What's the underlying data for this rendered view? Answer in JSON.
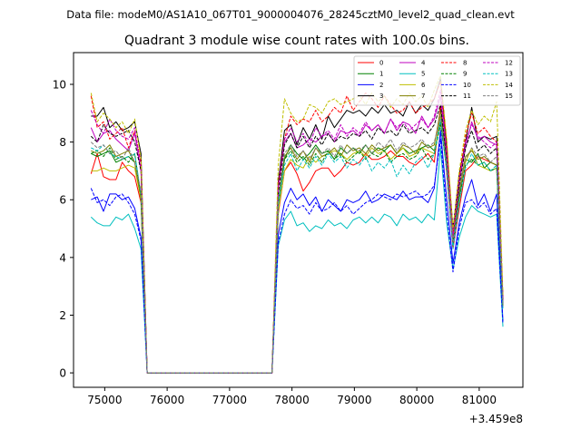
{
  "suptitle": "Data file: modeM0/AS1A10_067T01_9000004076_28245cztM0_level2_quad_clean.evt",
  "chart_data": {
    "type": "line",
    "title": "Quadrant 3 module wise count rates with 100.0s bins.",
    "xlabel": "",
    "ylabel": "",
    "x_offset_label": "+3.459e8",
    "xlim": [
      74500,
      81700
    ],
    "ylim": [
      -0.5,
      11.1
    ],
    "xticks": [
      75000,
      76000,
      77000,
      78000,
      79000,
      80000,
      81000
    ],
    "yticks": [
      0,
      2,
      4,
      6,
      8,
      10
    ],
    "grid": false,
    "legend_position": "top-right",
    "x": [
      74780,
      74880,
      74980,
      75080,
      75180,
      75280,
      75380,
      75480,
      75580,
      75680,
      75780,
      75880,
      75980,
      76080,
      76180,
      76280,
      76380,
      76480,
      76580,
      76680,
      76780,
      76880,
      76980,
      77080,
      77180,
      77280,
      77380,
      77480,
      77580,
      77680,
      77780,
      77880,
      77980,
      78080,
      78180,
      78280,
      78380,
      78480,
      78580,
      78680,
      78780,
      78880,
      78980,
      79080,
      79180,
      79280,
      79380,
      79480,
      79580,
      79680,
      79780,
      79880,
      79980,
      80080,
      80180,
      80280,
      80380,
      80480,
      80580,
      80680,
      80780,
      80880,
      80980,
      81080,
      81180,
      81280,
      81380
    ],
    "series": [
      {
        "name": "0",
        "color": "#ff0000",
        "dash": false,
        "values": [
          6.9,
          7.6,
          6.8,
          6.7,
          6.7,
          7.3,
          7.0,
          6.8,
          5.9,
          0,
          0,
          0,
          0,
          0,
          0,
          0,
          0,
          0,
          0,
          0,
          0,
          0,
          0,
          0,
          0,
          0,
          0,
          0,
          0,
          0,
          5.5,
          7.0,
          7.3,
          6.9,
          6.3,
          6.6,
          7.0,
          7.1,
          7.1,
          6.8,
          7.0,
          7.3,
          7.2,
          7.3,
          7.6,
          7.4,
          7.4,
          7.5,
          7.7,
          7.5,
          7.5,
          7.3,
          7.2,
          7.4,
          7.6,
          7.3,
          9.3,
          6.9,
          4.3,
          5.7,
          7.0,
          7.2,
          7.5,
          7.4,
          7.3,
          7.2,
          2.3
        ]
      },
      {
        "name": "1",
        "color": "#008000",
        "dash": false,
        "values": [
          7.6,
          7.5,
          7.6,
          7.7,
          7.3,
          7.4,
          7.5,
          7.3,
          6.0,
          0,
          0,
          0,
          0,
          0,
          0,
          0,
          0,
          0,
          0,
          0,
          0,
          0,
          0,
          0,
          0,
          0,
          0,
          0,
          0,
          0,
          5.8,
          7.4,
          7.9,
          7.6,
          7.4,
          7.6,
          7.9,
          7.6,
          7.7,
          7.4,
          7.8,
          7.6,
          7.8,
          7.6,
          7.9,
          7.6,
          7.8,
          7.7,
          7.9,
          7.6,
          7.8,
          7.6,
          7.7,
          7.8,
          7.9,
          7.7,
          8.7,
          7.1,
          4.5,
          6.1,
          7.4,
          7.3,
          7.6,
          7.1,
          7.3,
          7.2,
          2.4
        ]
      },
      {
        "name": "2",
        "color": "#0000ff",
        "dash": false,
        "values": [
          6.0,
          6.1,
          5.6,
          6.2,
          6.2,
          6.0,
          6.1,
          5.7,
          4.7,
          0,
          0,
          0,
          0,
          0,
          0,
          0,
          0,
          0,
          0,
          0,
          0,
          0,
          0,
          0,
          0,
          0,
          0,
          0,
          0,
          0,
          4.8,
          5.9,
          6.4,
          6.0,
          6.2,
          5.8,
          6.1,
          5.6,
          6.0,
          5.8,
          5.6,
          6.0,
          5.9,
          6.0,
          6.3,
          5.9,
          6.0,
          6.2,
          6.1,
          6.0,
          6.3,
          6.0,
          6.1,
          6.1,
          5.9,
          6.4,
          8.4,
          6.0,
          3.8,
          5.2,
          6.1,
          6.7,
          5.8,
          6.2,
          5.6,
          6.2,
          1.8
        ]
      },
      {
        "name": "3",
        "color": "#000000",
        "dash": false,
        "values": [
          8.9,
          8.9,
          9.2,
          8.5,
          8.7,
          8.4,
          8.5,
          8.7,
          7.6,
          0,
          0,
          0,
          0,
          0,
          0,
          0,
          0,
          0,
          0,
          0,
          0,
          0,
          0,
          0,
          0,
          0,
          0,
          0,
          0,
          0,
          6.6,
          8.4,
          8.6,
          7.9,
          8.5,
          8.1,
          8.6,
          8.1,
          8.9,
          8.5,
          8.8,
          9.1,
          9.0,
          9.1,
          8.9,
          9.2,
          9.0,
          9.3,
          9.0,
          9.1,
          8.9,
          9.4,
          9.0,
          9.3,
          9.1,
          9.5,
          10.2,
          7.8,
          5.0,
          6.9,
          8.0,
          9.2,
          8.0,
          8.2,
          8.1,
          8.2,
          2.6
        ]
      },
      {
        "name": "4",
        "color": "#bf00bf",
        "dash": false,
        "values": [
          8.5,
          8.0,
          8.3,
          8.4,
          8.1,
          7.9,
          7.7,
          8.3,
          7.0,
          0,
          0,
          0,
          0,
          0,
          0,
          0,
          0,
          0,
          0,
          0,
          0,
          0,
          0,
          0,
          0,
          0,
          0,
          0,
          0,
          0,
          6.4,
          8.0,
          8.3,
          7.8,
          7.9,
          8.1,
          8.0,
          8.2,
          8.3,
          8.0,
          8.4,
          8.3,
          8.4,
          8.2,
          8.6,
          8.4,
          8.6,
          8.3,
          8.8,
          8.4,
          8.7,
          8.6,
          8.3,
          8.9,
          8.5,
          8.8,
          9.6,
          7.5,
          4.6,
          6.6,
          7.8,
          8.7,
          8.1,
          8.2,
          8.0,
          7.9,
          2.5
        ]
      },
      {
        "name": "5",
        "color": "#00bfbf",
        "dash": false,
        "values": [
          5.4,
          5.2,
          5.1,
          5.1,
          5.4,
          5.3,
          5.5,
          5.0,
          4.3,
          0,
          0,
          0,
          0,
          0,
          0,
          0,
          0,
          0,
          0,
          0,
          0,
          0,
          0,
          0,
          0,
          0,
          0,
          0,
          0,
          0,
          4.4,
          5.3,
          5.6,
          5.1,
          5.2,
          4.9,
          5.1,
          5.0,
          5.3,
          5.1,
          5.2,
          5.0,
          5.3,
          5.4,
          5.2,
          5.4,
          5.2,
          5.5,
          5.4,
          5.1,
          5.5,
          5.3,
          5.4,
          5.2,
          5.5,
          5.3,
          7.8,
          5.2,
          3.6,
          4.7,
          5.4,
          5.8,
          5.6,
          5.5,
          5.4,
          5.5,
          1.6
        ]
      },
      {
        "name": "6",
        "color": "#bfbf00",
        "dash": false,
        "values": [
          7.0,
          7.0,
          7.1,
          7.0,
          7.0,
          7.1,
          7.2,
          7.1,
          6.0,
          0,
          0,
          0,
          0,
          0,
          0,
          0,
          0,
          0,
          0,
          0,
          0,
          0,
          0,
          0,
          0,
          0,
          0,
          0,
          0,
          0,
          5.6,
          7.0,
          7.4,
          7.2,
          7.1,
          7.5,
          7.3,
          7.5,
          7.6,
          7.7,
          7.6,
          7.4,
          7.6,
          7.7,
          7.5,
          7.8,
          7.6,
          7.7,
          7.4,
          7.6,
          7.8,
          7.5,
          7.6,
          7.8,
          7.7,
          7.6,
          8.9,
          7.2,
          4.5,
          6.3,
          7.3,
          7.8,
          7.2,
          7.1,
          7.0,
          7.1,
          2.3
        ]
      },
      {
        "name": "7",
        "color": "#7f7f00",
        "dash": false,
        "values": [
          7.7,
          7.6,
          7.7,
          7.9,
          7.5,
          7.6,
          7.7,
          7.3,
          6.1,
          0,
          0,
          0,
          0,
          0,
          0,
          0,
          0,
          0,
          0,
          0,
          0,
          0,
          0,
          0,
          0,
          0,
          0,
          0,
          0,
          0,
          5.9,
          7.5,
          7.8,
          7.4,
          7.7,
          7.3,
          7.8,
          7.5,
          7.6,
          7.8,
          7.5,
          7.9,
          7.7,
          7.8,
          7.6,
          7.9,
          7.7,
          7.8,
          7.9,
          7.6,
          7.9,
          7.8,
          7.6,
          8.0,
          7.8,
          7.9,
          9.1,
          7.3,
          4.6,
          6.3,
          7.5,
          7.7,
          7.4,
          7.5,
          7.3,
          7.2,
          2.3
        ]
      },
      {
        "name": "8",
        "color": "#ff0000",
        "dash": true,
        "values": [
          9.6,
          8.5,
          8.7,
          8.1,
          8.3,
          8.5,
          7.8,
          8.4,
          7.3,
          0,
          0,
          0,
          0,
          0,
          0,
          0,
          0,
          0,
          0,
          0,
          0,
          0,
          0,
          0,
          0,
          0,
          0,
          0,
          0,
          0,
          6.5,
          8.1,
          8.9,
          8.6,
          8.8,
          8.7,
          9.1,
          8.7,
          8.9,
          9.2,
          9.0,
          9.6,
          9.1,
          9.4,
          9.7,
          9.5,
          9.2,
          9.6,
          9.3,
          9.0,
          9.1,
          9.4,
          9.0,
          9.2,
          9.3,
          9.5,
          10.1,
          8.0,
          4.8,
          6.8,
          8.2,
          9.0,
          8.3,
          8.5,
          8.2,
          8.0,
          2.6
        ]
      },
      {
        "name": "9",
        "color": "#008000",
        "dash": true,
        "values": [
          7.6,
          7.7,
          7.5,
          7.8,
          7.4,
          7.5,
          7.3,
          7.6,
          6.1,
          0,
          0,
          0,
          0,
          0,
          0,
          0,
          0,
          0,
          0,
          0,
          0,
          0,
          0,
          0,
          0,
          0,
          0,
          0,
          0,
          0,
          5.9,
          7.4,
          7.7,
          7.3,
          7.5,
          7.2,
          7.6,
          7.3,
          7.7,
          7.4,
          7.6,
          7.3,
          7.5,
          7.7,
          7.4,
          7.6,
          7.5,
          7.7,
          7.3,
          7.5,
          7.6,
          7.4,
          7.5,
          7.8,
          7.4,
          7.6,
          8.6,
          7.1,
          4.4,
          6.0,
          7.2,
          7.4,
          7.2,
          7.3,
          7.0,
          7.1,
          2.3
        ]
      },
      {
        "name": "10",
        "color": "#0000ff",
        "dash": true,
        "values": [
          6.4,
          5.9,
          6.0,
          5.8,
          6.1,
          6.2,
          5.9,
          5.5,
          4.6,
          0,
          0,
          0,
          0,
          0,
          0,
          0,
          0,
          0,
          0,
          0,
          0,
          0,
          0,
          0,
          0,
          0,
          0,
          0,
          0,
          0,
          4.5,
          5.5,
          6.0,
          5.7,
          5.8,
          5.5,
          5.9,
          5.6,
          5.7,
          5.9,
          5.6,
          5.8,
          5.5,
          5.7,
          5.9,
          6.0,
          6.2,
          6.1,
          6.0,
          6.2,
          6.1,
          6.2,
          6.3,
          6.1,
          6.2,
          6.5,
          8.1,
          5.5,
          3.5,
          5.0,
          5.9,
          6.0,
          5.7,
          5.9,
          5.5,
          5.7,
          1.7
        ]
      },
      {
        "name": "11",
        "color": "#000000",
        "dash": true,
        "values": [
          8.2,
          8.0,
          8.6,
          8.3,
          8.2,
          8.3,
          8.4,
          8.0,
          7.0,
          0,
          0,
          0,
          0,
          0,
          0,
          0,
          0,
          0,
          0,
          0,
          0,
          0,
          0,
          0,
          0,
          0,
          0,
          0,
          0,
          0,
          6.2,
          7.9,
          8.3,
          7.8,
          8.2,
          7.8,
          8.2,
          7.9,
          8.3,
          8.0,
          8.2,
          8.1,
          8.3,
          8.2,
          8.4,
          8.1,
          8.5,
          8.3,
          8.4,
          8.2,
          8.6,
          8.3,
          8.4,
          8.5,
          8.3,
          8.6,
          9.3,
          7.3,
          4.5,
          6.5,
          7.8,
          8.4,
          7.7,
          7.9,
          7.6,
          7.8,
          2.4
        ]
      },
      {
        "name": "12",
        "color": "#bf00bf",
        "dash": true,
        "values": [
          9.1,
          8.6,
          8.3,
          8.8,
          8.4,
          8.2,
          8.1,
          8.5,
          7.1,
          0,
          0,
          0,
          0,
          0,
          0,
          0,
          0,
          0,
          0,
          0,
          0,
          0,
          0,
          0,
          0,
          0,
          0,
          0,
          0,
          0,
          6.4,
          8.1,
          8.5,
          8.0,
          8.3,
          7.9,
          8.5,
          8.2,
          8.4,
          8.1,
          8.6,
          8.2,
          8.5,
          8.3,
          8.7,
          8.4,
          8.6,
          8.3,
          8.8,
          8.5,
          8.7,
          8.4,
          8.6,
          8.8,
          8.5,
          8.9,
          9.8,
          7.6,
          4.7,
          6.7,
          8.0,
          8.6,
          8.2,
          8.0,
          7.8,
          8.0,
          2.5
        ]
      },
      {
        "name": "13",
        "color": "#00bfbf",
        "dash": true,
        "values": [
          7.8,
          7.7,
          7.9,
          7.6,
          7.5,
          7.4,
          7.5,
          7.6,
          6.2,
          0,
          0,
          0,
          0,
          0,
          0,
          0,
          0,
          0,
          0,
          0,
          0,
          0,
          0,
          0,
          0,
          0,
          0,
          0,
          0,
          0,
          5.8,
          7.2,
          7.6,
          7.0,
          7.4,
          7.1,
          7.5,
          7.2,
          7.6,
          7.3,
          7.5,
          7.1,
          7.4,
          7.2,
          7.5,
          7.0,
          7.3,
          7.1,
          7.4,
          6.8,
          7.2,
          6.9,
          7.3,
          7.5,
          7.1,
          7.6,
          8.8,
          7.0,
          4.3,
          5.9,
          7.1,
          7.6,
          7.2,
          7.3,
          7.0,
          7.2,
          2.2
        ]
      },
      {
        "name": "14",
        "color": "#bfbf00",
        "dash": true,
        "values": [
          9.7,
          8.7,
          9.0,
          8.8,
          8.5,
          8.7,
          8.3,
          8.8,
          7.4,
          0,
          0,
          0,
          0,
          0,
          0,
          0,
          0,
          0,
          0,
          0,
          0,
          0,
          0,
          0,
          0,
          0,
          0,
          0,
          0,
          0,
          7.2,
          9.5,
          9.0,
          8.7,
          8.8,
          9.3,
          9.2,
          9.0,
          9.4,
          9.5,
          9.3,
          9.4,
          9.5,
          9.6,
          9.3,
          9.7,
          9.4,
          9.6,
          9.2,
          9.5,
          9.3,
          9.7,
          9.4,
          9.6,
          9.2,
          9.8,
          10.3,
          8.1,
          5.0,
          7.0,
          8.4,
          9.1,
          8.6,
          8.9,
          8.7,
          9.4,
          2.7
        ]
      },
      {
        "name": "15",
        "color": "#7f7f7f",
        "dash": true,
        "values": [
          8.0,
          7.8,
          7.9,
          7.6,
          7.7,
          7.4,
          7.8,
          7.3,
          6.3,
          0,
          0,
          0,
          0,
          0,
          0,
          0,
          0,
          0,
          0,
          0,
          0,
          0,
          0,
          0,
          0,
          0,
          0,
          0,
          0,
          0,
          6.0,
          7.6,
          7.9,
          7.5,
          7.7,
          7.4,
          7.8,
          7.6,
          7.8,
          7.5,
          7.9,
          7.6,
          7.8,
          7.7,
          7.9,
          7.6,
          8.0,
          7.8,
          8.1,
          7.7,
          8.0,
          7.8,
          7.9,
          8.1,
          7.8,
          8.0,
          8.9,
          7.2,
          4.5,
          6.2,
          7.4,
          7.8,
          7.5,
          7.6,
          7.3,
          7.5,
          2.3
        ]
      }
    ]
  }
}
